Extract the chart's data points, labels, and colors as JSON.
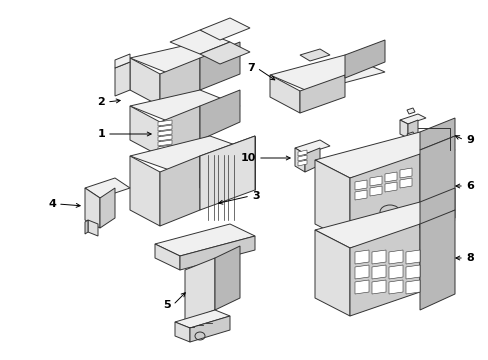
{
  "background_color": "#ffffff",
  "line_color": "#333333",
  "text_color": "#000000",
  "fig_width": 4.89,
  "fig_height": 3.6,
  "dpi": 100,
  "lw": 0.7,
  "fill_white": "#ffffff",
  "fill_light": "#f0f0f0",
  "fill_mid": "#e0e0e0",
  "fill_dark": "#cccccc",
  "fill_darker": "#b8b8b8"
}
